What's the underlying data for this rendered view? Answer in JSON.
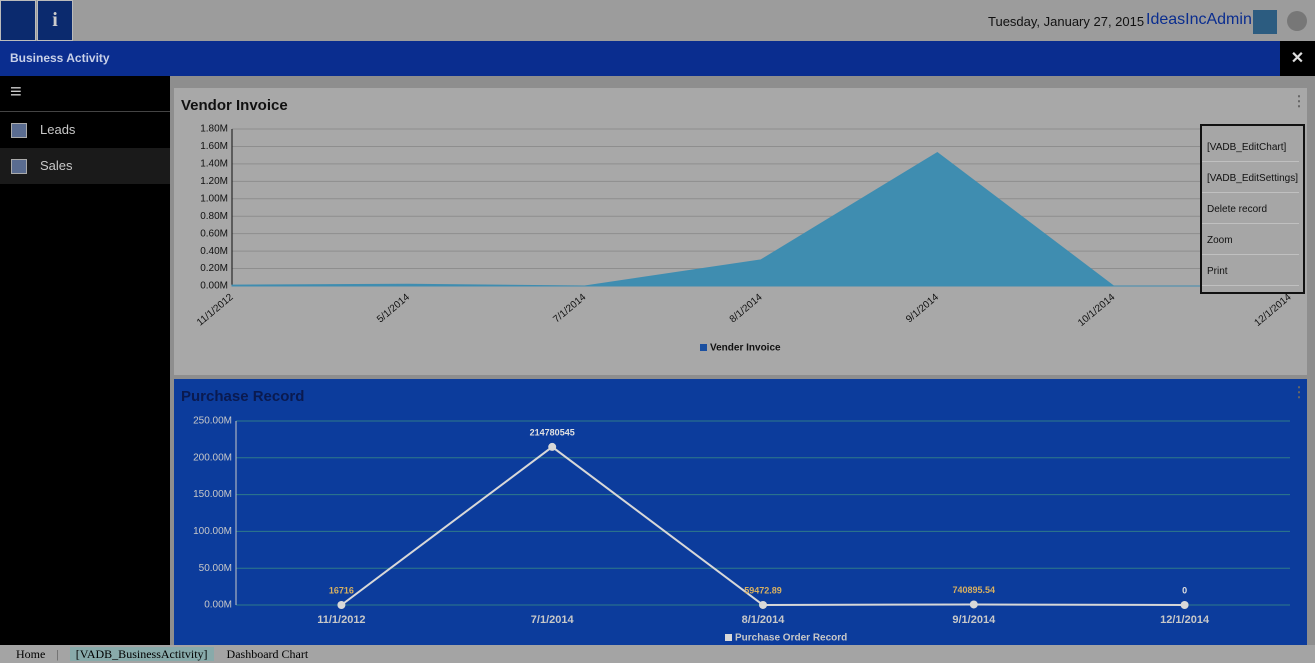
{
  "header": {
    "date": "Tuesday, January 27, 2015",
    "user": "IdeasIncAdmin"
  },
  "toolbar": {
    "title": "Business Activity"
  },
  "sidebar": {
    "items": [
      "Leads",
      "Sales"
    ]
  },
  "menu": {
    "items": [
      "[VADB_EditChart]",
      "[VADB_EditSettings]",
      "Delete record",
      "Zoom",
      "Print"
    ]
  },
  "taskbar": {
    "items": [
      "Home",
      "|",
      "[VADB_BusinessActitvity]",
      "Dashboard Chart"
    ]
  },
  "chart_data": [
    {
      "type": "area",
      "title": "Vendor Invoice",
      "categories": [
        "11/1/2012",
        "5/1/2014",
        "7/1/2014",
        "8/1/2014",
        "9/1/2014",
        "10/1/2014",
        "12/1/2014"
      ],
      "series": [
        {
          "name": "Vender Invoice",
          "color": "#3f8db0",
          "values": [
            10000,
            20000,
            0,
            300000,
            1530000,
            0,
            0
          ]
        }
      ],
      "ylim": [
        0,
        1800000
      ],
      "yticks": [
        {
          "value": 0,
          "label": "0.00M"
        },
        {
          "value": 200000,
          "label": "0.20M"
        },
        {
          "value": 400000,
          "label": "0.40M"
        },
        {
          "value": 600000,
          "label": "0.60M"
        },
        {
          "value": 800000,
          "label": "0.80M"
        },
        {
          "value": 1000000,
          "label": "1.00M"
        },
        {
          "value": 1200000,
          "label": "1.20M"
        },
        {
          "value": 1400000,
          "label": "1.40M"
        },
        {
          "value": 1600000,
          "label": "1.60M"
        },
        {
          "value": 1800000,
          "label": "1.80M"
        }
      ],
      "grid": true
    },
    {
      "type": "line",
      "title": "Purchase Record",
      "categories": [
        "11/1/2012",
        "7/1/2014",
        "8/1/2014",
        "9/1/2014",
        "12/1/2014"
      ],
      "series": [
        {
          "name": "Purchase Order Record",
          "color": "#d8d8d8",
          "values": [
            16716,
            214780545,
            59472.89,
            740895.54,
            0
          ]
        }
      ],
      "ylim": [
        0,
        250000000
      ],
      "yticks": [
        {
          "value": 0,
          "label": "0.00M"
        },
        {
          "value": 50000000,
          "label": "50.00M"
        },
        {
          "value": 100000000,
          "label": "100.00M"
        },
        {
          "value": 150000000,
          "label": "150.00M"
        },
        {
          "value": 200000000,
          "label": "200.00M"
        },
        {
          "value": 250000000,
          "label": "250.00M"
        }
      ],
      "grid": true
    }
  ]
}
